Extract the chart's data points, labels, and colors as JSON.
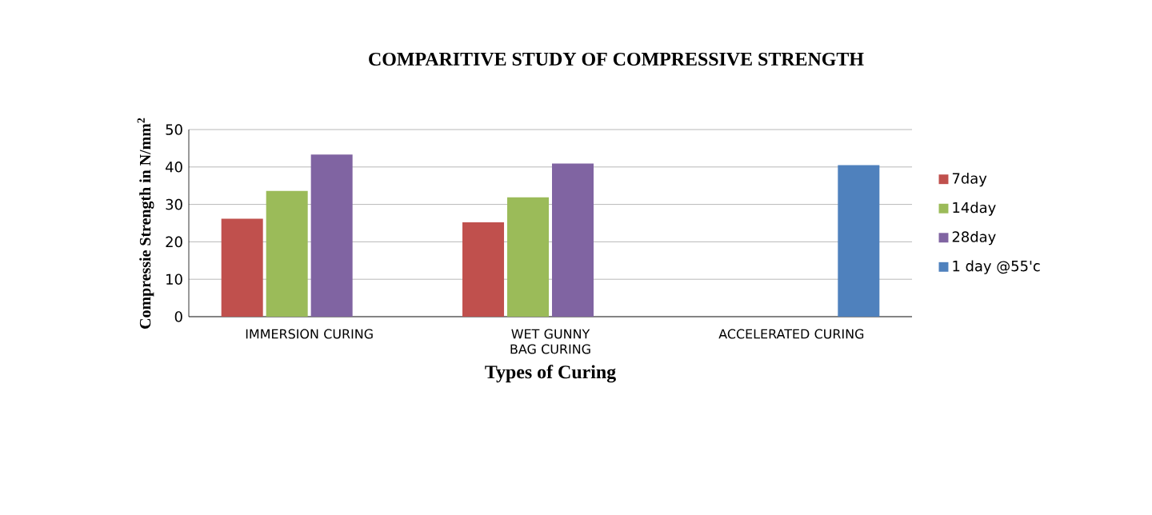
{
  "chart_data": {
    "type": "bar",
    "title": "COMPARITIVE  STUDY OF COMPRESSIVE  STRENGTH",
    "xlabel": "Types of Curing",
    "ylabel": "Compressie Strength in N/mm$^{2}$",
    "categories": [
      "IMMERSION CURING",
      "WET GUNNY BAG CURING",
      "ACCELERATED CURING"
    ],
    "series": [
      {
        "name": "7day",
        "color": "#c0504d",
        "values": [
          26.2,
          25.2,
          null
        ]
      },
      {
        "name": "14day",
        "color": "#9bbb59",
        "values": [
          33.6,
          31.9,
          null
        ]
      },
      {
        "name": "28day",
        "color": "#8064a2",
        "values": [
          43.3,
          40.9,
          null
        ]
      },
      {
        "name": "1 day @55'c",
        "color": "#4f81bd",
        "values": [
          null,
          null,
          40.5
        ]
      }
    ],
    "ylim": [
      0,
      50
    ],
    "yticks": [
      0,
      10,
      20,
      30,
      40,
      50
    ],
    "grid": "y",
    "legend": "right"
  }
}
